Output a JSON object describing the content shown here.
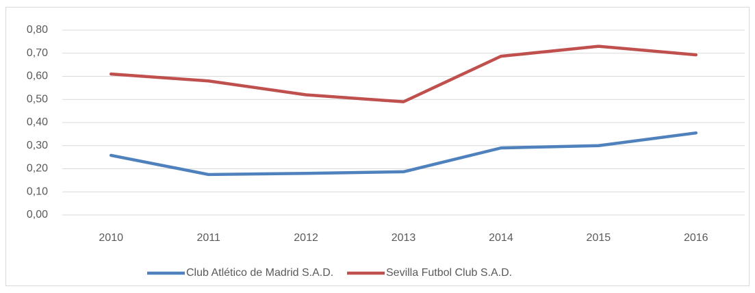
{
  "chart_data": {
    "type": "line",
    "categories": [
      "2010",
      "2011",
      "2012",
      "2013",
      "2014",
      "2015",
      "2016"
    ],
    "series": [
      {
        "name": "Club Atlético de Madrid S.A.D.",
        "color": "#4f81bd",
        "values": [
          0.258,
          0.175,
          0.18,
          0.187,
          0.29,
          0.3,
          0.355
        ]
      },
      {
        "name": "Sevilla Futbol Club S.A.D.",
        "color": "#c0504d",
        "values": [
          0.61,
          0.58,
          0.52,
          0.49,
          0.687,
          0.73,
          0.693
        ]
      }
    ],
    "ylim": [
      0,
      0.8
    ],
    "yticks": [
      {
        "value": 0,
        "label": "0,00"
      },
      {
        "value": 0.1,
        "label": "0,10"
      },
      {
        "value": 0.2,
        "label": "0,20"
      },
      {
        "value": 0.3,
        "label": "0,30"
      },
      {
        "value": 0.4,
        "label": "0,40"
      },
      {
        "value": 0.5,
        "label": "0,50"
      },
      {
        "value": 0.6,
        "label": "0,60"
      },
      {
        "value": 0.7,
        "label": "0,70"
      },
      {
        "value": 0.8,
        "label": "0,80"
      }
    ],
    "grid": true,
    "legend": "bottom"
  }
}
